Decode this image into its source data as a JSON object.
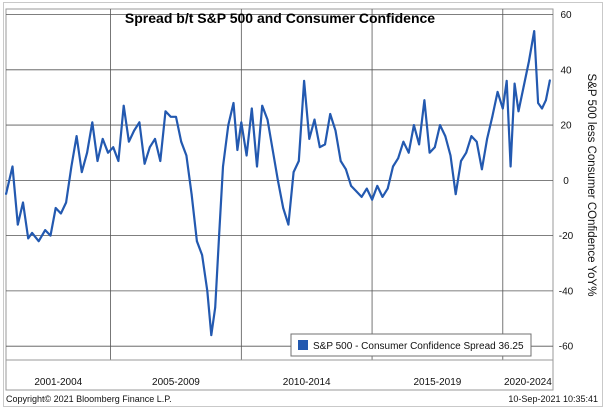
{
  "chart_data": {
    "type": "line",
    "title": "Spread b/t S&P 500 and Consumer Confidence",
    "ylabel": "S&P 500 less Consumer COnfidence YoY%",
    "xlabel": "",
    "ylim": [
      -65,
      62
    ],
    "yticks": [
      "60",
      "40",
      "20",
      "0",
      "-20",
      "-40",
      "-60"
    ],
    "grid": true,
    "legend": {
      "placement": "bottom-right",
      "entries": [
        "S&P 500 - Consumer Confidence Spread 36.25"
      ]
    },
    "x_periods": [
      "2001-2004",
      "2005-2009",
      "2010-2014",
      "2015-2019",
      "2020-2024"
    ],
    "series": [
      {
        "name": "S&P 500 - Consumer Confidence Spread",
        "color": "#2359b0",
        "x": [
          2001.0,
          2001.25,
          2001.45,
          2001.65,
          2001.85,
          2002.0,
          2002.25,
          2002.5,
          2002.7,
          2002.9,
          2003.1,
          2003.3,
          2003.5,
          2003.7,
          2003.9,
          2004.1,
          2004.3,
          2004.5,
          2004.7,
          2004.9,
          2005.1,
          2005.3,
          2005.5,
          2005.7,
          2005.9,
          2006.1,
          2006.3,
          2006.5,
          2006.7,
          2006.9,
          2007.1,
          2007.3,
          2007.5,
          2007.7,
          2007.9,
          2008.1,
          2008.3,
          2008.5,
          2008.7,
          2008.85,
          2009.0,
          2009.15,
          2009.3,
          2009.5,
          2009.7,
          2009.85,
          2010.0,
          2010.2,
          2010.4,
          2010.6,
          2010.8,
          2011.0,
          2011.2,
          2011.4,
          2011.6,
          2011.8,
          2012.0,
          2012.2,
          2012.4,
          2012.6,
          2012.8,
          2013.0,
          2013.2,
          2013.4,
          2013.6,
          2013.8,
          2014.0,
          2014.2,
          2014.4,
          2014.6,
          2014.8,
          2015.0,
          2015.2,
          2015.4,
          2015.6,
          2015.8,
          2016.0,
          2016.2,
          2016.4,
          2016.6,
          2016.8,
          2017.0,
          2017.2,
          2017.4,
          2017.6,
          2017.8,
          2018.0,
          2018.2,
          2018.4,
          2018.6,
          2018.8,
          2019.0,
          2019.2,
          2019.4,
          2019.6,
          2019.8,
          2020.0,
          2020.15,
          2020.3,
          2020.45,
          2020.6,
          2020.8,
          2021.0,
          2021.2,
          2021.35,
          2021.5,
          2021.65,
          2021.8
        ],
        "values": [
          -5,
          5,
          -16,
          -8,
          -21,
          -19,
          -22,
          -18,
          -20,
          -10,
          -12,
          -8,
          5,
          16,
          3,
          10,
          21,
          7,
          15,
          10,
          12,
          7,
          27,
          14,
          18,
          21,
          6,
          12,
          15,
          7,
          25,
          23,
          23,
          14,
          9,
          -5,
          -22,
          -27,
          -40,
          -56,
          -46,
          -20,
          5,
          20,
          28,
          11,
          21,
          9,
          26,
          5,
          27,
          22,
          11,
          0,
          -10,
          -16,
          3,
          7,
          36,
          15,
          22,
          12,
          13,
          24,
          18,
          7,
          4,
          -2,
          -4,
          -6,
          -3,
          -7,
          -2,
          -6,
          -3,
          5,
          8,
          14,
          10,
          20,
          13,
          29,
          10,
          12,
          20,
          16,
          9,
          -5,
          7,
          10,
          16,
          14,
          4,
          15,
          23,
          32,
          26,
          36,
          5,
          35,
          25,
          34,
          43,
          54,
          28,
          26,
          29,
          36.25
        ]
      }
    ]
  },
  "footer": {
    "copyright": "Copyright© 2021 Bloomberg Finance L.P.",
    "timestamp": "10-Sep-2021 10:35:41"
  }
}
